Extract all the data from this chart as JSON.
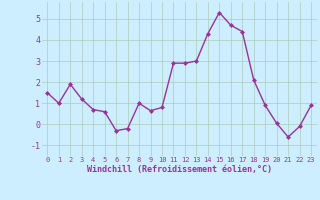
{
  "x": [
    0,
    1,
    2,
    3,
    4,
    5,
    6,
    7,
    8,
    9,
    10,
    11,
    12,
    13,
    14,
    15,
    16,
    17,
    18,
    19,
    20,
    21,
    22,
    23
  ],
  "y": [
    1.5,
    1.0,
    1.9,
    1.2,
    0.7,
    0.6,
    -0.3,
    -0.2,
    1.0,
    0.65,
    0.8,
    2.9,
    2.9,
    3.0,
    4.3,
    5.3,
    4.7,
    4.4,
    2.1,
    0.9,
    0.05,
    -0.6,
    -0.1,
    0.9
  ],
  "line_color": "#993399",
  "marker": "D",
  "marker_size": 2,
  "bg_color": "#cceeff",
  "grid_color": "#aaccbb",
  "xlabel": "Windchill (Refroidissement éolien,°C)",
  "xlabel_color": "#993399",
  "tick_color": "#993399",
  "ylim": [
    -1.5,
    5.8
  ],
  "xlim": [
    -0.5,
    23.5
  ],
  "yticks": [
    -1,
    0,
    1,
    2,
    3,
    4,
    5
  ],
  "xticks": [
    0,
    1,
    2,
    3,
    4,
    5,
    6,
    7,
    8,
    9,
    10,
    11,
    12,
    13,
    14,
    15,
    16,
    17,
    18,
    19,
    20,
    21,
    22,
    23
  ],
  "xtick_labels": [
    "0",
    "1",
    "2",
    "3",
    "4",
    "5",
    "6",
    "7",
    "8",
    "9",
    "10",
    "11",
    "12",
    "13",
    "14",
    "15",
    "16",
    "17",
    "18",
    "19",
    "20",
    "21",
    "22",
    "23"
  ],
  "line_width": 1.0,
  "xlabel_fontsize": 6.0,
  "xtick_fontsize": 5.0,
  "ytick_fontsize": 6.0
}
